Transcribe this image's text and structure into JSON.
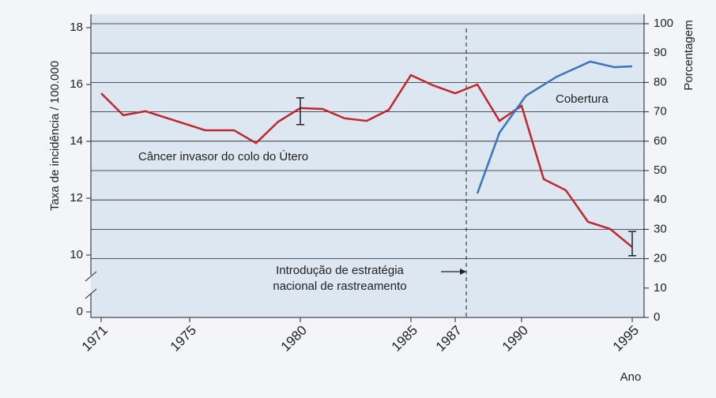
{
  "chart_data": {
    "type": "line",
    "xlabel": "Ano",
    "ylabel": "Taxa de incidência / 100.000",
    "y2label": "Porcentagem",
    "xlim": [
      1971,
      1995
    ],
    "xticks": [
      1971,
      1975,
      1980,
      1985,
      1987,
      1990,
      1995
    ],
    "ylim": [
      0,
      18
    ],
    "ybreak": [
      0,
      10
    ],
    "yticks": [
      0,
      10,
      12,
      14,
      16,
      18
    ],
    "y2lim": [
      0,
      100
    ],
    "y2ticks": [
      0,
      10,
      20,
      30,
      40,
      50,
      60,
      70,
      80,
      90,
      100
    ],
    "grid": true,
    "series": [
      {
        "name": "Câncer invasor do colo do Útero",
        "color": "#c0272d",
        "x": [
          1971,
          1972,
          1973,
          1975.7,
          1977,
          1978,
          1979,
          1980,
          1981,
          1982,
          1983,
          1984,
          1985,
          1986,
          1987,
          1988,
          1989,
          1990,
          1991,
          1992,
          1993,
          1994,
          1995
        ],
        "values": [
          15.69,
          14.92,
          15.06,
          14.39,
          14.39,
          13.94,
          14.69,
          15.17,
          15.14,
          14.81,
          14.72,
          15.11,
          16.33,
          15.97,
          15.69,
          16.0,
          14.72,
          15.25,
          12.67,
          12.28,
          11.17,
          10.92,
          10.28
        ]
      },
      {
        "name": "Cobertura",
        "color": "#3b74c0",
        "axis": "y2",
        "x": [
          1988,
          1989,
          1990.2,
          1991.6,
          1993.1,
          1994.2,
          1995
        ],
        "values": [
          42.2,
          62.9,
          75.5,
          82,
          87.1,
          85.2,
          85.5
        ]
      }
    ],
    "error_bars": [
      {
        "x": 1980,
        "value": 15.06,
        "error": 0.47
      },
      {
        "x": 1995,
        "value": 10.36,
        "error": 0.47
      }
    ],
    "vline_x": 1987.5,
    "annotation": [
      "Introdução de estratégia",
      "nacional de rastreamento"
    ]
  }
}
